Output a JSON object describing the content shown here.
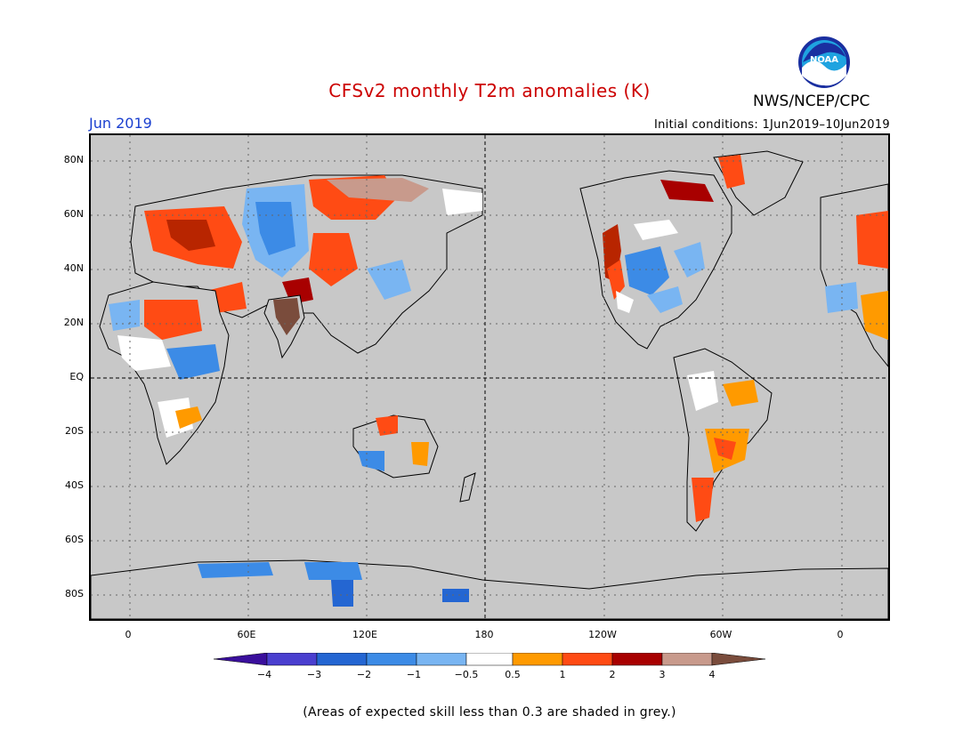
{
  "header": {
    "title": "CFSv2 monthly T2m anomalies (K)",
    "agency": "NWS/NCEP/CPC",
    "month": "Jun 2019",
    "initial_conditions": "Initial conditions: 1Jun2019–10Jun2019",
    "logo_text": "NOAA"
  },
  "colors": {
    "title": "#cc0000",
    "month": "#1a3fcf",
    "ocean_skill_grey": "#c8c8c8",
    "coast": "#000000"
  },
  "axes": {
    "lat_labels": [
      "80N",
      "60N",
      "40N",
      "20N",
      "EQ",
      "20S",
      "40S",
      "60S",
      "80S"
    ],
    "lon_labels": [
      "0",
      "60E",
      "120E",
      "180",
      "120W",
      "60W",
      "0"
    ]
  },
  "legend": {
    "colors": [
      "#3a0f9c",
      "#4a3fcf",
      "#2466d2",
      "#3c8be6",
      "#79b5f2",
      "#ffffff",
      "#ff9a00",
      "#ff4b14",
      "#a80000",
      "#c89a8c",
      "#7a4c3c"
    ],
    "labels": [
      "−4",
      "−3",
      "−2",
      "−1",
      "−0.5",
      "0.5",
      "1",
      "2",
      "3",
      "4"
    ]
  },
  "footnote": "(Areas of expected skill less than 0.3 are shaded in grey.)"
}
